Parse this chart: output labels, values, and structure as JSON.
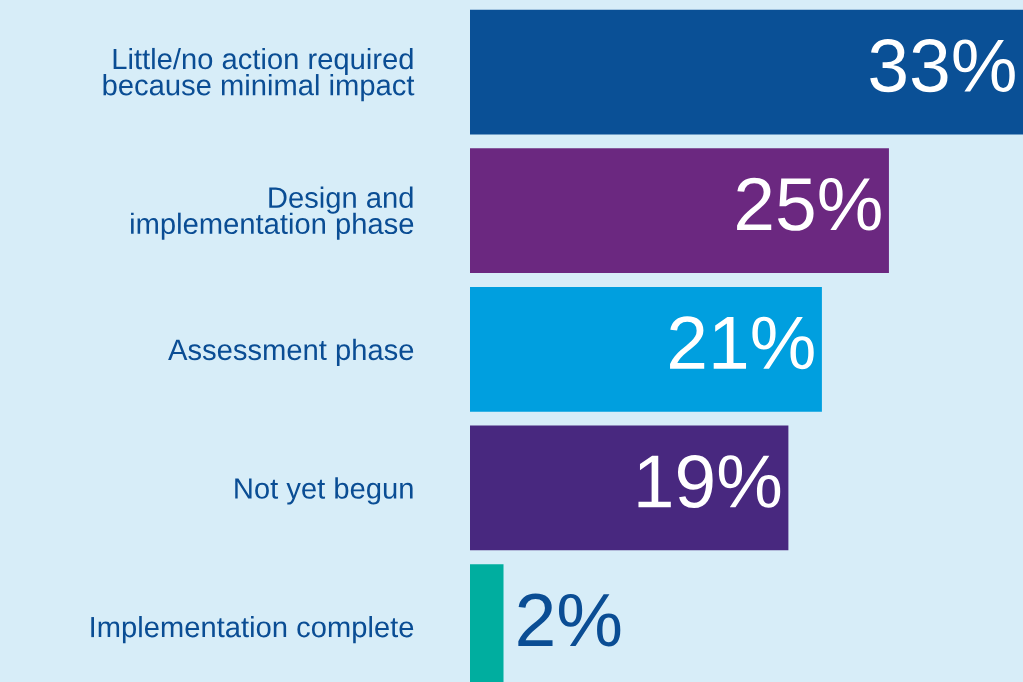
{
  "chart_data": {
    "type": "bar",
    "orientation": "horizontal",
    "categories": [
      "Little/no action required\nbecause minimal impact",
      "Design and\nimplementation phase",
      "Assessment phase",
      "Not yet begun",
      "Implementation complete"
    ],
    "values": [
      33,
      25,
      21,
      19,
      2
    ],
    "colors": [
      "#0a5096",
      "#6b2880",
      "#009fdf",
      "#48287f",
      "#00ae9f"
    ],
    "value_labels": [
      "33%",
      "25%",
      "21%",
      "19%",
      "2%"
    ],
    "xlim": [
      0,
      33
    ],
    "tick_labels": "y",
    "grid": false,
    "legend": false
  }
}
